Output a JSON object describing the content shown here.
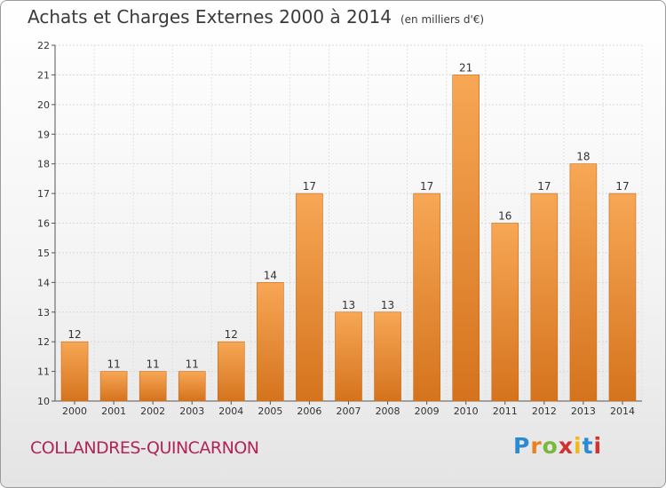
{
  "header": {
    "title": "Achats et Charges Externes 2000 à 2014",
    "unit": "(en milliers d'€)"
  },
  "footer": {
    "commune": "COLLANDRES-QUINCARNON",
    "logo": "Proxiti",
    "logo_colors": [
      "#2a8ad4",
      "#e8821e",
      "#79b83a",
      "#d4302d",
      "#f1b817",
      "#2a8ad4",
      "#d4302d"
    ]
  },
  "colors": {
    "bar_light": "#f7a755",
    "bar_dark": "#d5731d",
    "bar_edge": "#c8691a",
    "commune": "#b0245a"
  },
  "chart_data": {
    "type": "bar",
    "title": "Achats et Charges Externes 2000 à 2014",
    "subtitle": "(en milliers d'€)",
    "categories": [
      "2000",
      "2001",
      "2002",
      "2003",
      "2004",
      "2005",
      "2006",
      "2007",
      "2008",
      "2009",
      "2010",
      "2011",
      "2012",
      "2013",
      "2014"
    ],
    "values": [
      12,
      11,
      11,
      11,
      12,
      14,
      17,
      13,
      13,
      17,
      21,
      16,
      17,
      18,
      17
    ],
    "ylim": [
      10,
      22
    ],
    "yticks": [
      10,
      11,
      12,
      13,
      14,
      15,
      16,
      17,
      18,
      19,
      20,
      21,
      22
    ],
    "grid": true
  }
}
